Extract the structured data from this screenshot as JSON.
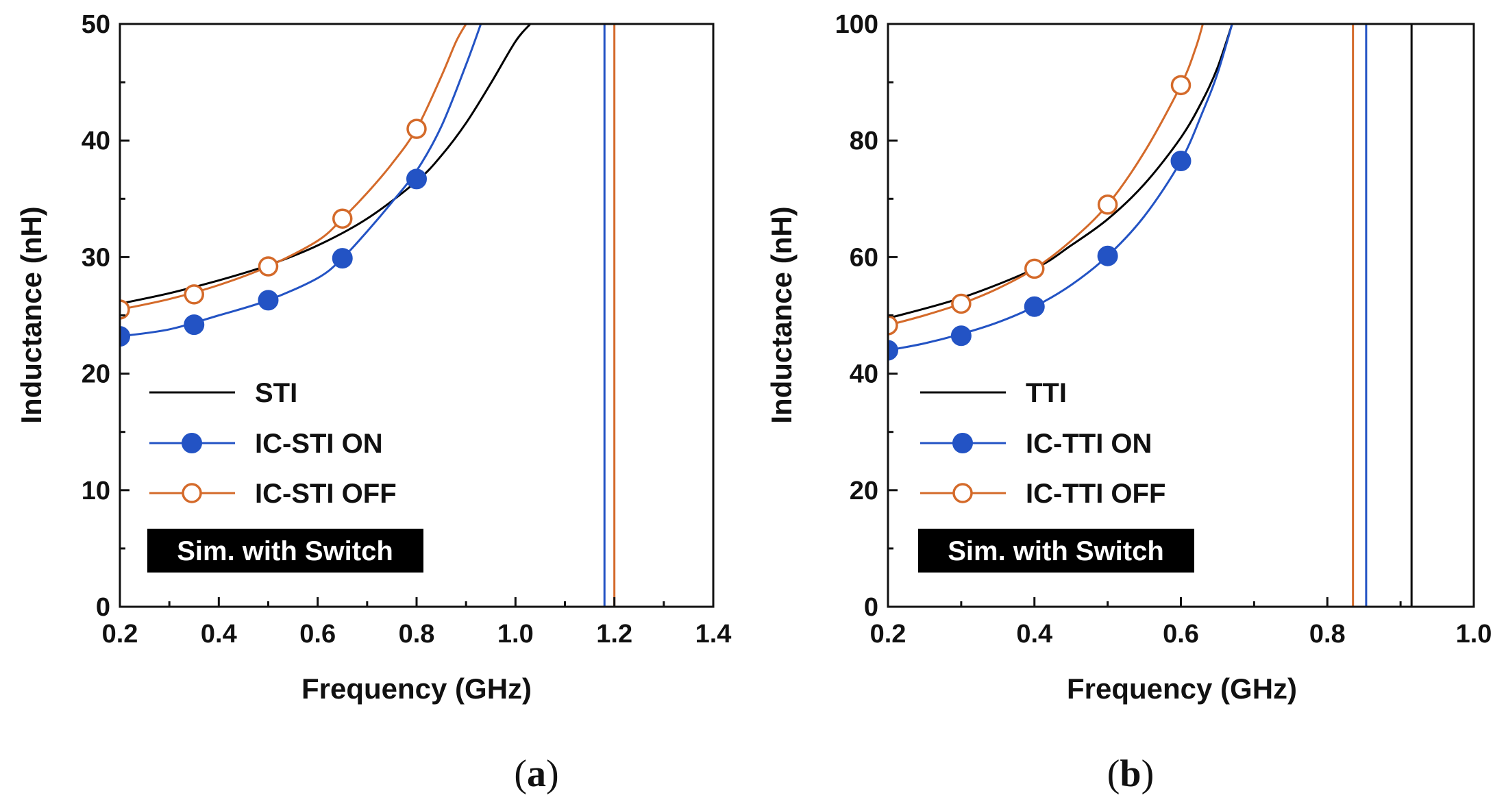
{
  "figure": {
    "colors": {
      "STI": "#000000",
      "ON": "#2353c4",
      "OFF": "#d46a2a",
      "axis": "#111111",
      "box_bg": "#000000",
      "box_text": "#ffffff"
    }
  },
  "chart_data": [
    {
      "type": "line",
      "panel_label": {
        "open": "(",
        "letter": "a",
        "close": ")"
      },
      "xlabel": "Frequency (GHz)",
      "ylabel": "Inductance (nH)",
      "xlim": [
        0.2,
        1.4
      ],
      "ylim": [
        0,
        50
      ],
      "xticks": [
        0.2,
        0.4,
        0.6,
        0.8,
        1.0,
        1.2,
        1.4
      ],
      "xtick_labels": [
        "0.2",
        "0.4",
        "0.6",
        "0.8",
        "1.0",
        "1.2",
        "1.4"
      ],
      "yticks": [
        0,
        10,
        20,
        30,
        40,
        50
      ],
      "ytick_labels": [
        "0",
        "10",
        "20",
        "30",
        "40",
        "50"
      ],
      "annotation": "Sim. with Switch",
      "series": [
        {
          "name": "STI",
          "color": "#000000",
          "marker": "none",
          "x": [
            0.2,
            0.3,
            0.4,
            0.5,
            0.6,
            0.7,
            0.8,
            0.85,
            0.9,
            0.95,
            1.0,
            1.03
          ],
          "y": [
            26.0,
            26.9,
            28.0,
            29.3,
            31.0,
            33.3,
            36.5,
            38.7,
            41.5,
            44.9,
            48.5,
            50.0
          ],
          "resonance_x": null
        },
        {
          "name": "IC-STI ON",
          "color": "#2353c4",
          "marker": "filled",
          "x": [
            0.2,
            0.3,
            0.4,
            0.5,
            0.6,
            0.65,
            0.7,
            0.75,
            0.8,
            0.85,
            0.9,
            0.93
          ],
          "y": [
            23.2,
            23.8,
            25.0,
            26.3,
            28.2,
            29.9,
            32.2,
            34.7,
            37.4,
            41.2,
            46.5,
            50.0
          ],
          "markers_x": [
            0.2,
            0.35,
            0.5,
            0.65,
            0.8
          ],
          "markers_y": [
            23.2,
            24.2,
            26.3,
            29.9,
            36.7
          ],
          "resonance_x": 1.18
        },
        {
          "name": "IC-STI OFF",
          "color": "#d46a2a",
          "marker": "open",
          "x": [
            0.2,
            0.3,
            0.4,
            0.5,
            0.6,
            0.65,
            0.7,
            0.75,
            0.8,
            0.85,
            0.88,
            0.9
          ],
          "y": [
            25.5,
            26.4,
            27.6,
            29.2,
            31.4,
            33.3,
            35.5,
            38.0,
            41.0,
            45.5,
            48.5,
            50.0
          ],
          "markers_x": [
            0.2,
            0.35,
            0.5,
            0.65,
            0.8
          ],
          "markers_y": [
            25.5,
            26.8,
            29.2,
            33.3,
            41.0
          ],
          "resonance_x": 1.2
        }
      ]
    },
    {
      "type": "line",
      "panel_label": {
        "open": "(",
        "letter": "b",
        "close": ")"
      },
      "xlabel": "Frequency (GHz)",
      "ylabel": "Inductance (nH)",
      "xlim": [
        0.2,
        1.0
      ],
      "ylim": [
        0,
        100
      ],
      "xticks": [
        0.2,
        0.4,
        0.6,
        0.8,
        1.0
      ],
      "xtick_labels": [
        "0.2",
        "0.4",
        "0.6",
        "0.8",
        "1.0"
      ],
      "yticks": [
        0,
        20,
        40,
        60,
        80,
        100
      ],
      "ytick_labels": [
        "0",
        "20",
        "40",
        "60",
        "80",
        "100"
      ],
      "annotation": "Sim. with Switch",
      "series": [
        {
          "name": "TTI",
          "color": "#000000",
          "marker": "none",
          "x": [
            0.2,
            0.3,
            0.4,
            0.45,
            0.5,
            0.55,
            0.6,
            0.63,
            0.65,
            0.67
          ],
          "y": [
            49.5,
            53.0,
            58.0,
            62.0,
            66.5,
            72.5,
            80.5,
            87.0,
            92.5,
            100.0
          ],
          "resonance_x": 0.915
        },
        {
          "name": "IC-TTI ON",
          "color": "#2353c4",
          "marker": "filled",
          "x": [
            0.2,
            0.25,
            0.3,
            0.35,
            0.4,
            0.45,
            0.5,
            0.55,
            0.6,
            0.63,
            0.65,
            0.67
          ],
          "y": [
            44.0,
            45.2,
            46.8,
            48.8,
            51.5,
            55.2,
            60.2,
            67.0,
            76.5,
            85.0,
            91.5,
            100.0
          ],
          "markers_x": [
            0.2,
            0.3,
            0.4,
            0.5,
            0.6
          ],
          "markers_y": [
            44.0,
            46.5,
            51.5,
            60.2,
            76.5
          ],
          "resonance_x": 0.853
        },
        {
          "name": "IC-TTI OFF",
          "color": "#d46a2a",
          "marker": "open",
          "x": [
            0.2,
            0.25,
            0.3,
            0.35,
            0.4,
            0.45,
            0.5,
            0.55,
            0.6,
            0.62,
            0.63
          ],
          "y": [
            48.3,
            50.0,
            52.0,
            54.6,
            58.0,
            62.8,
            69.0,
            78.0,
            89.5,
            95.8,
            100.0
          ],
          "markers_x": [
            0.2,
            0.3,
            0.4,
            0.5,
            0.6
          ],
          "markers_y": [
            48.3,
            52.0,
            58.0,
            69.0,
            89.5
          ],
          "resonance_x": 0.835
        }
      ]
    }
  ]
}
